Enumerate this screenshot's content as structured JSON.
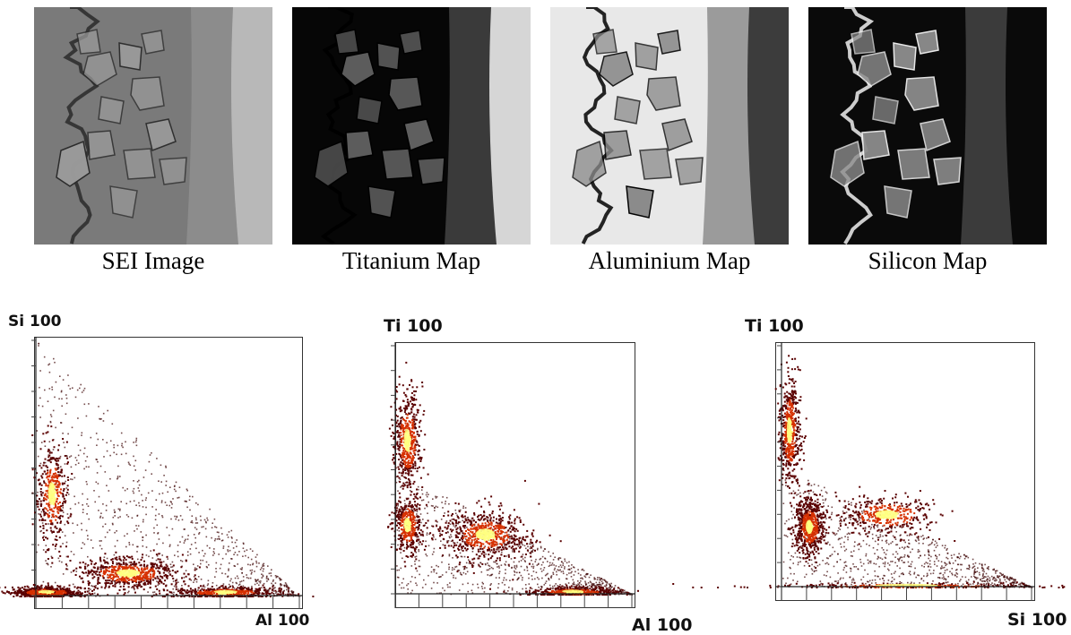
{
  "maps": [
    {
      "id": "sei",
      "caption": "SEI Image",
      "palette": {
        "bg": "#7a7a7a",
        "particles": "#9a9a9a",
        "edge": "#2a2a2a",
        "band": "#8c8c8c",
        "coating": "#b8b8b8"
      }
    },
    {
      "id": "ti",
      "caption": "Titanium Map",
      "palette": {
        "bg": "#060606",
        "particles": "#606060",
        "edge": "#000000",
        "band": "#3a3a3a",
        "coating": "#d6d6d6"
      }
    },
    {
      "id": "al",
      "caption": "Aluminium Map",
      "palette": {
        "bg": "#e8e8e8",
        "particles": "#8a8a8a",
        "edge": "#000000",
        "band": "#9b9b9b",
        "coating": "#3c3c3c"
      }
    },
    {
      "id": "si",
      "caption": "Silicon Map",
      "palette": {
        "bg": "#0a0a0a",
        "particles": "#8c8c8c",
        "edge": "#f0f0f0",
        "band": "#3b3b3b",
        "coating": "#0a0a0a"
      }
    }
  ],
  "chart_data": [
    {
      "type": "scatter",
      "subtype": "density",
      "xlabel": "Al 100",
      "ylabel": "Si 100",
      "xlim": [
        0,
        100
      ],
      "ylim": [
        0,
        100
      ],
      "clusters": [
        {
          "x": 4,
          "y": 1.5,
          "relative_density": 0.9
        },
        {
          "x": 35,
          "y": 9,
          "relative_density": 1.0
        },
        {
          "x": 72,
          "y": 1.5,
          "relative_density": 0.75
        },
        {
          "x": 6,
          "y": 40,
          "relative_density": 0.6
        }
      ],
      "colors": {
        "low": "#5a0000",
        "mid": "#d63000",
        "high": "#ffff80"
      }
    },
    {
      "type": "scatter",
      "subtype": "density",
      "xlabel": "Al 100",
      "ylabel": "Ti 100",
      "xlim": [
        0,
        100
      ],
      "ylim": [
        0,
        100
      ],
      "clusters": [
        {
          "x": 5,
          "y": 62,
          "relative_density": 0.8
        },
        {
          "x": 5,
          "y": 28,
          "relative_density": 0.6
        },
        {
          "x": 38,
          "y": 24,
          "relative_density": 1.0
        },
        {
          "x": 75,
          "y": 1,
          "relative_density": 0.7
        }
      ],
      "colors": {
        "low": "#5a0000",
        "mid": "#d63000",
        "high": "#ffff80"
      }
    },
    {
      "type": "scatter",
      "subtype": "density",
      "xlabel": "Si 100",
      "ylabel": "Ti 100",
      "xlim": [
        0,
        100
      ],
      "ylim": [
        0,
        100
      ],
      "clusters": [
        {
          "x": 3,
          "y": 65,
          "relative_density": 0.85
        },
        {
          "x": 11,
          "y": 25,
          "relative_density": 1.0
        },
        {
          "x": 42,
          "y": 30,
          "relative_density": 0.6
        },
        {
          "x": 50,
          "y": 0.5,
          "relative_density": 0.4
        }
      ],
      "colors": {
        "low": "#5a0000",
        "mid": "#d63000",
        "high": "#ffff80"
      }
    }
  ]
}
